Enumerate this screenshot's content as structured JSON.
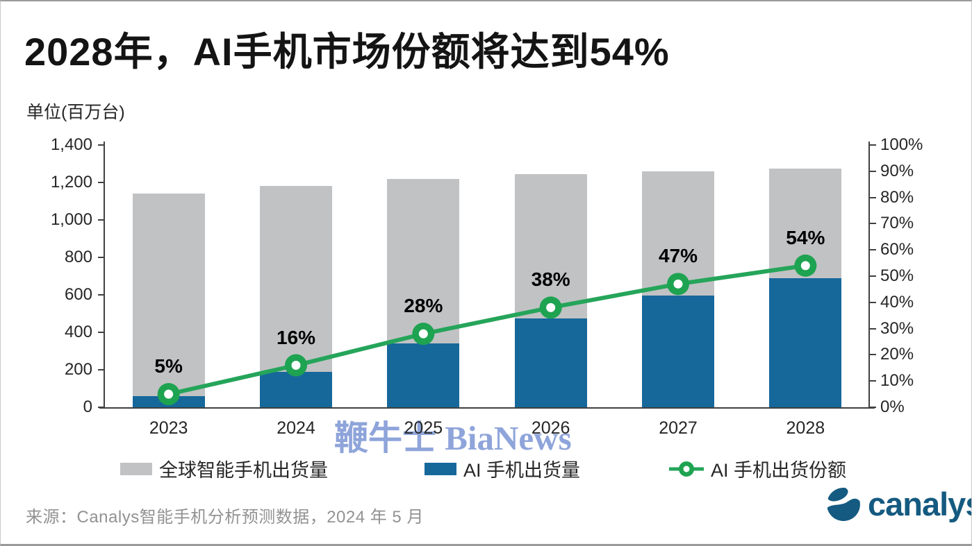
{
  "title": "2028年，AI手机市场份额将达到54%",
  "unit_label": "单位(百万台)",
  "watermark": "鞭牛士 BiaNews",
  "source": "来源：Canalys智能手机分析预测数据，2024 年 5 月",
  "logo": {
    "text": "canalys"
  },
  "colors": {
    "bar_global": "#c1c2c4",
    "bar_ai": "#16689b",
    "line": "#25a55a",
    "marker": "#1ea351",
    "axis": "#404040",
    "watermark": "#8ea4da",
    "logo": "#155a80",
    "source_text": "#929292"
  },
  "chart_data": {
    "type": "bar+line",
    "title": "2028年，AI手机市场份额将达到54%",
    "unit": "百万台 (millions of units)",
    "categories": [
      "2023",
      "2024",
      "2025",
      "2026",
      "2027",
      "2028"
    ],
    "series": [
      {
        "name": "全球智能手机出货量",
        "type": "bar",
        "axis": "left",
        "color": "#c1c2c4",
        "values": [
          1140,
          1180,
          1220,
          1245,
          1260,
          1275
        ]
      },
      {
        "name": "AI 手机出货量",
        "type": "bar",
        "axis": "left",
        "color": "#16689b",
        "values": [
          60,
          190,
          340,
          475,
          595,
          690
        ]
      },
      {
        "name": "AI 手机出货份额",
        "type": "line",
        "axis": "right",
        "color": "#25a55a",
        "values": [
          5,
          16,
          28,
          38,
          47,
          54
        ],
        "labels": [
          "5%",
          "16%",
          "28%",
          "38%",
          "47%",
          "54%"
        ]
      }
    ],
    "left_axis": {
      "min": 0,
      "max": 1400,
      "step": 200,
      "tick_labels": [
        "0",
        "200",
        "400",
        "600",
        "800",
        "1,000",
        "1,200",
        "1,400"
      ]
    },
    "right_axis": {
      "min": 0,
      "max": 100,
      "step": 10,
      "tick_labels": [
        "0%",
        "10%",
        "20%",
        "30%",
        "40%",
        "50%",
        "60%",
        "70%",
        "80%",
        "90%",
        "100%"
      ]
    },
    "grid": false,
    "legend_position": "bottom"
  }
}
